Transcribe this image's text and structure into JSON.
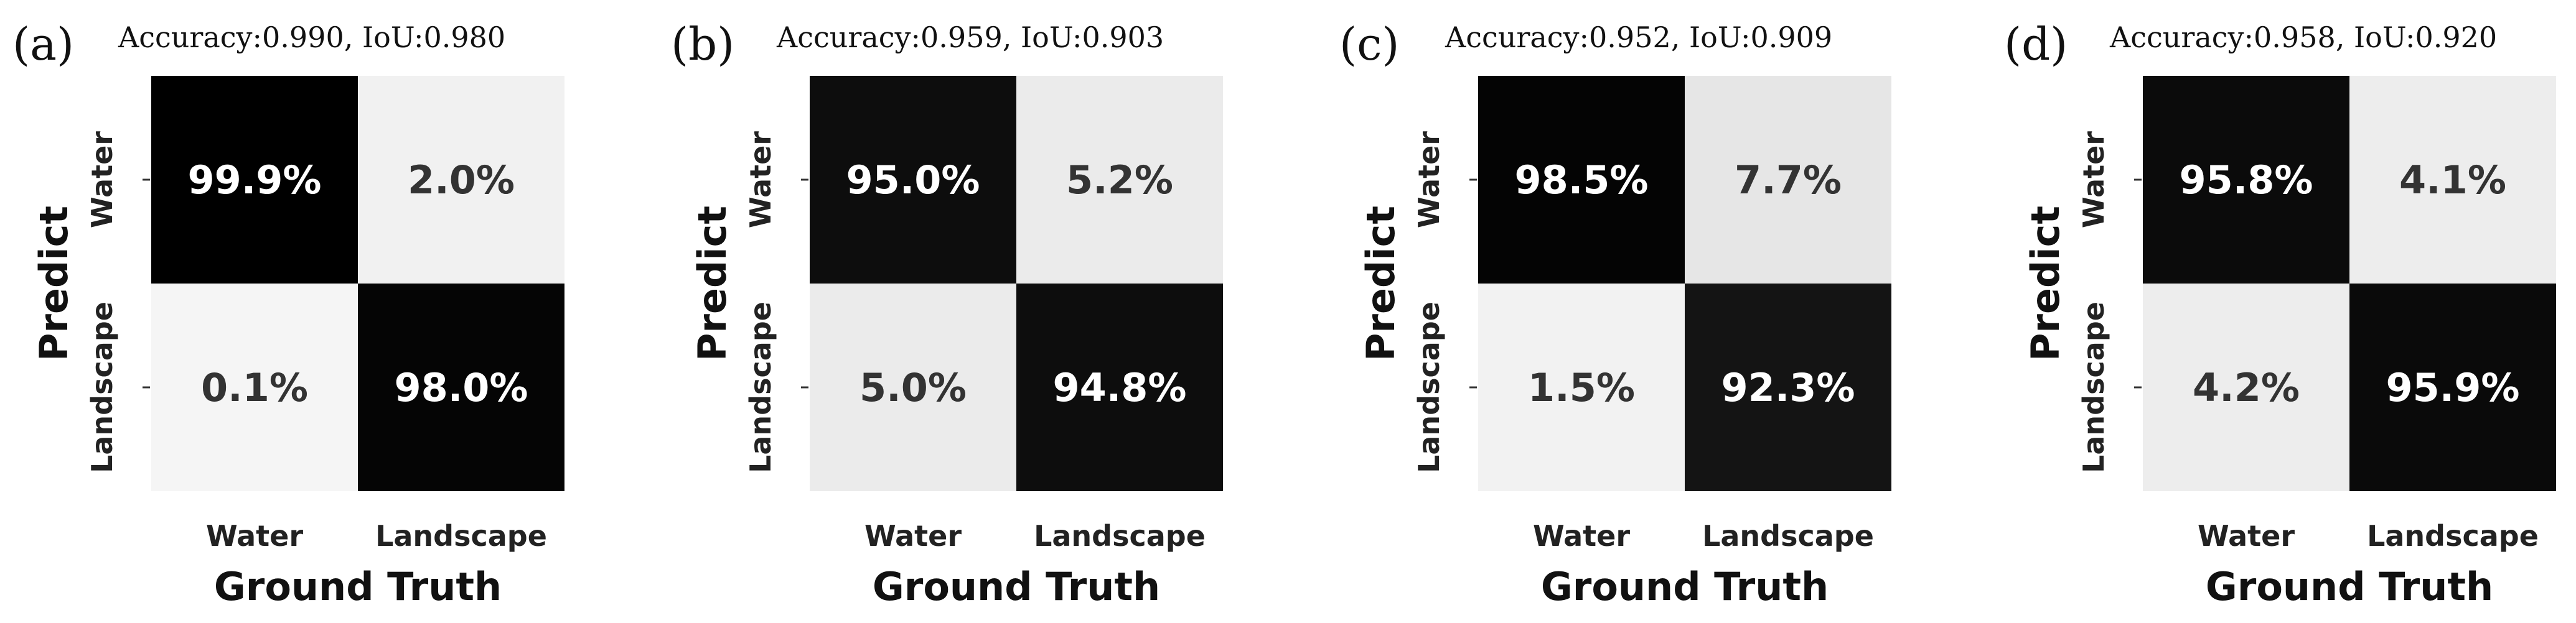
{
  "chart_data": [
    {
      "type": "heatmap",
      "panel_label": "(a)",
      "title": "Accuracy:0.990, IoU:0.980",
      "xlabel": "Ground Truth",
      "ylabel": "Predict",
      "x_categories": [
        "Water",
        "Landscape"
      ],
      "y_categories": [
        "Water",
        "Landscape"
      ],
      "values": [
        [
          99.9,
          2.0
        ],
        [
          0.1,
          98.0
        ]
      ],
      "labels": [
        [
          "99.9%",
          "2.0%"
        ],
        [
          "0.1%",
          "98.0%"
        ]
      ],
      "colormap": "white-to-black"
    },
    {
      "type": "heatmap",
      "panel_label": "(b)",
      "title": "Accuracy:0.959, IoU:0.903",
      "xlabel": "Ground Truth",
      "ylabel": "Predict",
      "x_categories": [
        "Water",
        "Landscape"
      ],
      "y_categories": [
        "Water",
        "Landscape"
      ],
      "values": [
        [
          95.0,
          5.2
        ],
        [
          5.0,
          94.8
        ]
      ],
      "labels": [
        [
          "95.0%",
          "5.2%"
        ],
        [
          "5.0%",
          "94.8%"
        ]
      ],
      "colormap": "white-to-black"
    },
    {
      "type": "heatmap",
      "panel_label": "(c)",
      "title": "Accuracy:0.952, IoU:0.909",
      "xlabel": "Ground Truth",
      "ylabel": "Predict",
      "x_categories": [
        "Water",
        "Landscape"
      ],
      "y_categories": [
        "Water",
        "Landscape"
      ],
      "values": [
        [
          98.5,
          7.7
        ],
        [
          1.5,
          92.3
        ]
      ],
      "labels": [
        [
          "98.5%",
          "7.7%"
        ],
        [
          "1.5%",
          "92.3%"
        ]
      ],
      "colormap": "white-to-black"
    },
    {
      "type": "heatmap",
      "panel_label": "(d)",
      "title": "Accuracy:0.958, IoU:0.920",
      "xlabel": "Ground Truth",
      "ylabel": "Predict",
      "x_categories": [
        "Water",
        "Landscape"
      ],
      "y_categories": [
        "Water",
        "Landscape"
      ],
      "values": [
        [
          95.8,
          4.1
        ],
        [
          4.2,
          95.9
        ]
      ],
      "labels": [
        [
          "95.8%",
          "4.1%"
        ],
        [
          "4.2%",
          "95.9%"
        ]
      ],
      "colormap": "white-to-black"
    }
  ]
}
